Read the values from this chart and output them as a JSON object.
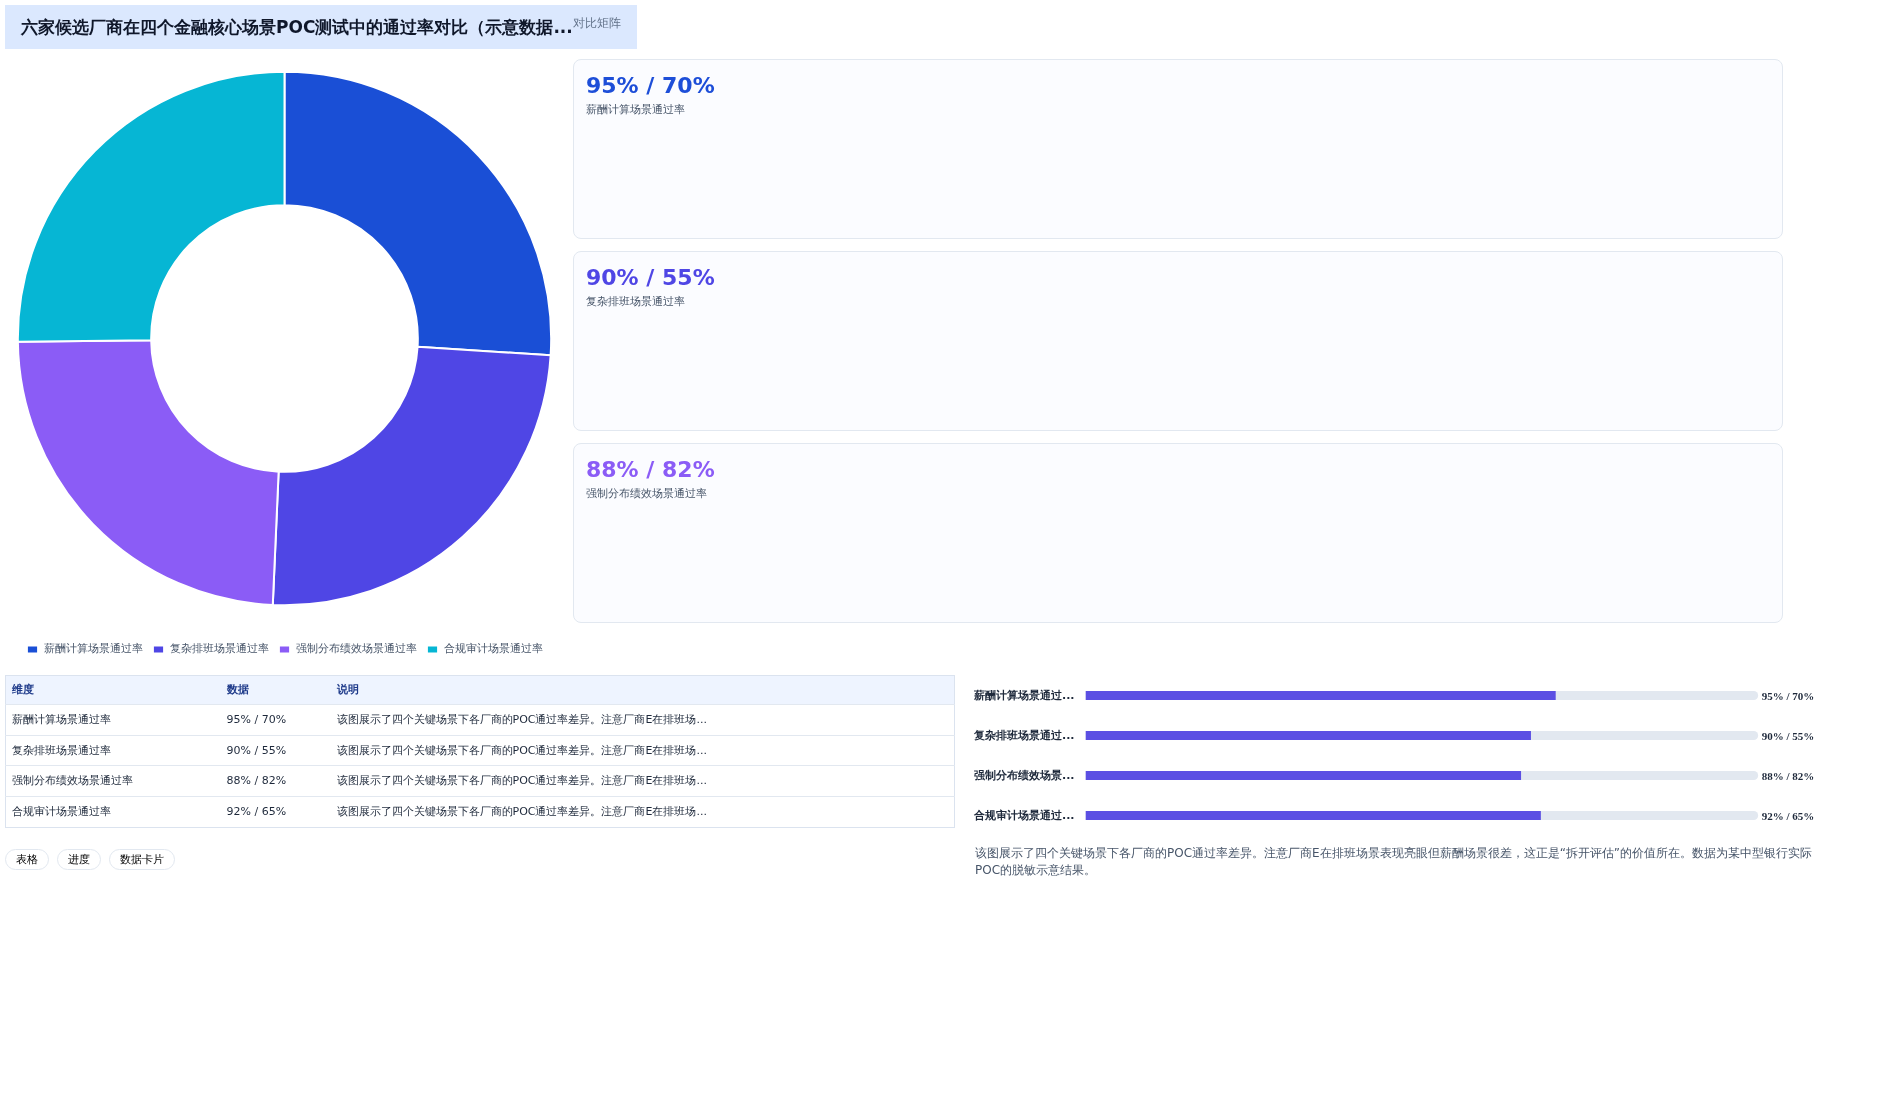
{
  "chart_data": [
    {
      "type": "donut",
      "title": "六家候选厂商在四个金融核心场景POC测试中的通过率对比（示意数据...",
      "annotations": [
        "对比矩阵"
      ],
      "categories": [
        "薪酬计算场景通过率",
        "复杂排班场景通过率",
        "强制分布绩效场景通过率",
        "合规审计场景通过率"
      ],
      "values": [
        26.0,
        24.7,
        24.1,
        25.2
      ],
      "colors": [
        "#1a4fd6",
        "#4f46e5",
        "#8b5cf6",
        "#06b6d4"
      ],
      "legend": "bottom"
    },
    {
      "type": "other",
      "annotations": [
        "95% / 70%",
        "薪酬计算场景通过率",
        "90% / 55%",
        "复杂排班场景通过率",
        "88% / 82%",
        "强制分布绩效场景通过率"
      ]
    },
    {
      "type": "other",
      "annotations": [
        "维度",
        "数据",
        "说明",
        "薪酬计算场景通过率",
        "95% / 70%",
        "该图展示了四个关键场景下各厂商的POC通过率差异。注意厂商E在排班场...",
        "复杂排班场景通过率",
        "90% / 55%",
        "该图展示了四个关键场景下各厂商的POC通过率差异。注意厂商E在排班场...",
        "强制分布绩效场景通过率",
        "88% / 82%",
        "该图展示了四个关键场景下各厂商的POC通过率差异。注意厂商E在排班场...",
        "合规审计场景通过率",
        "92% / 65%",
        "该图展示了四个关键场景下各厂商的POC通过率差异。注意厂商E在排班场...",
        "表格",
        "进度",
        "数据卡片"
      ]
    },
    {
      "type": "bar",
      "orientation": "horizontal",
      "xlim": [
        0,
        135
      ],
      "tick_labels": "y",
      "categories": [
        "薪酬计算场景通过...",
        "复杂排班场景通过...",
        "强制分布绩效场景...",
        "合规审计场景通过..."
      ],
      "values": [
        95,
        90,
        88,
        92
      ],
      "color": "#5b4fe3",
      "value_labels": [
        "95% / 70%",
        "90% / 55%",
        "88% / 82%",
        "92% / 65%"
      ],
      "annotations": [
        "该图展示了四个关键场景下各厂商的POC通过率差异。注意厂商E在排班场景表现亮眼但薪酬场景很差，这正是“拆开评估”的价值所在。数据为某中型银行实际POC的脱敏示意结果。"
      ]
    }
  ]
}
